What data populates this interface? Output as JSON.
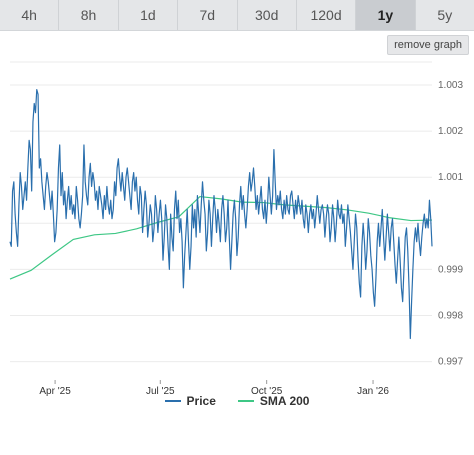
{
  "tabs": [
    {
      "label": "4h",
      "active": false
    },
    {
      "label": "8h",
      "active": false
    },
    {
      "label": "1d",
      "active": false
    },
    {
      "label": "7d",
      "active": false
    },
    {
      "label": "30d",
      "active": false
    },
    {
      "label": "120d",
      "active": false
    },
    {
      "label": "1y",
      "active": true
    },
    {
      "label": "5y",
      "active": false
    }
  ],
  "remove_graph_label": "remove graph",
  "chart_data": {
    "type": "line",
    "x_start": "2025-02-21",
    "x_end": "2026-02-21",
    "x_tick_labels": [
      {
        "label": "Apr '25",
        "date": "2025-04-01"
      },
      {
        "label": "Jul '25",
        "date": "2025-07-01"
      },
      {
        "label": "Oct '25",
        "date": "2025-10-01"
      },
      {
        "label": "Jan '26",
        "date": "2026-01-01"
      }
    ],
    "y_ticks": [
      0.997,
      0.998,
      0.999,
      1.001,
      1.002,
      1.003
    ],
    "ylim": [
      0.9966,
      1.0035
    ],
    "grid": true,
    "series": [
      {
        "name": "Price",
        "color": "#2a6fad",
        "values": [
          0.9996,
          0.9995,
          1.0007,
          1.0009,
          1.0002,
          0.9998,
          0.9995,
          1.0004,
          1.0011,
          1.0008,
          1.0003,
          1.0006,
          1.0009,
          1.0005,
          1.0012,
          1.0018,
          1.0016,
          1.0007,
          1.0022,
          1.0026,
          1.0024,
          1.0029,
          1.0028,
          1.0012,
          1.0014,
          1.0009,
          1.0006,
          1.0003,
          1.0008,
          1.0011,
          1.0009,
          1.0006,
          1.0003,
          1.0007,
          1.0002,
          0.9996,
          0.9998,
          1.0003,
          1.0012,
          1.0017,
          1.0006,
          1.0011,
          1.0004,
          1.0007,
          1.0001,
          1.0005,
          1.0008,
          1.0003,
          1.0006,
          1.0002,
          1.0004,
          1.0001,
          1.0008,
          1.0005,
          1.0001,
          0.9999,
          1.0002,
          1.0006,
          1.0017,
          1.0009,
          1.0006,
          1.0004,
          1.001,
          1.0013,
          1.0008,
          1.0011,
          1.0009,
          1.0005,
          1.0007,
          1.0003,
          1.0008,
          1.0006,
          1.0004,
          1.0001,
          1.0006,
          1.0003,
          1.0008,
          1.0004,
          1.0002,
          1.0005,
          1.0001,
          1.0003,
          1.0009,
          1.0006,
          1.0012,
          1.0014,
          1.001,
          1.0007,
          1.0011,
          1.0008,
          1.0005,
          1.001,
          1.0012,
          1.0009,
          1.0006,
          1.0003,
          1.0009,
          1.0011,
          1.0007,
          1.001,
          1.0005,
          1.0002,
          1.0008,
          1.0006,
          0.9998,
          1.0003,
          1.0007,
          1.0004,
          0.9997,
          1.0,
          1.0004,
          1.0002,
          0.9996,
          0.9999,
          1.0006,
          1.0003,
          0.9998,
          1.0002,
          1.0005,
          1.0001,
          0.9992,
          0.9997,
          1.0004,
          1.0001,
          0.9995,
          0.999,
          1.0002,
          0.9997,
          0.9994,
          1.0003,
          1.0007,
          1.0001,
          1.0005,
          0.9998,
          1.0001,
          0.9996,
          0.9986,
          0.9993,
          0.9998,
          1.0003,
          0.9996,
          0.999,
          0.9995,
          1.0004,
          0.9999,
          1.0003,
          0.9997,
          1.0006,
          1.0002,
          0.9998,
          1.0004,
          1.0009,
          1.0005,
          1.0002,
          0.9994,
          0.9998,
          1.0005,
          1.0002,
          0.9995,
          1.0001,
          1.0006,
          1.0003,
          0.9998,
          1.0003,
          1.0,
          0.9996,
          1.0003,
          1.0006,
          1.0002,
          0.9996,
          0.9999,
          1.0005,
          0.9997,
          0.999,
          0.9996,
          1.0002,
          1.0005,
          1.0001,
          0.9993,
          0.9997,
          1.0004,
          1.0008,
          1.0003,
          1.0006,
          1.0002,
          0.9999,
          1.0003,
          1.0008,
          1.0011,
          1.0007,
          1.0009,
          1.0012,
          1.0008,
          1.0003,
          1.0006,
          1.0002,
          1.0005,
          1.0008,
          1.0003,
          1.0001,
          1.0005,
          1.0,
          1.0004,
          1.001,
          1.0006,
          1.0002,
          1.0006,
          1.0016,
          1.0009,
          1.0003,
          1.0006,
          1.0004,
          1.0007,
          1.0003,
          1.0001,
          1.0005,
          1.0002,
          1.0006,
          1.0003,
          1.0002,
          1.0006,
          1.0007,
          1.0004,
          1.0001,
          1.0005,
          1.0002,
          1.0006,
          1.0004,
          1.0002,
          1.0005,
          1.0001,
          0.9999,
          1.0004,
          1.0002,
          0.9998,
          1.0002,
          1.0004,
          1.0001,
          1.0003,
          0.9999,
          1.0002,
          1.0006,
          1.0003,
          1.0,
          1.0003,
          1.0004,
          1.0002,
          0.9997,
          1.0001,
          1.0004,
          1.0002,
          0.9996,
          0.9999,
          1.0004,
          1.0001,
          0.9996,
          1.0,
          1.0005,
          1.0002,
          1.0001,
          1.0004,
          1.0,
          1.0002,
          0.9995,
          0.9999,
          1.0004,
          1.0001,
          0.9998,
          0.9994,
          0.999,
          0.9996,
          1.0002,
          0.9999,
          0.9992,
          0.9987,
          0.9984,
          0.9995,
          1.0,
          0.9996,
          0.999,
          0.9994,
          1.0001,
          0.9998,
          0.9993,
          0.999,
          0.9985,
          0.9982,
          0.9988,
          0.9996,
          1.0,
          0.9995,
          0.9999,
          1.0003,
          0.9997,
          0.9992,
          0.9997,
          1.0002,
          0.9998,
          0.9994,
          0.9999,
          1.0001,
          0.9996,
          0.9991,
          0.9987,
          0.9992,
          0.9997,
          0.9992,
          0.9986,
          0.9983,
          0.999,
          0.9997,
          0.9999,
          0.9994,
          0.9986,
          0.9975,
          0.9983,
          0.999,
          0.9996,
          0.9999,
          0.9996,
          1.0,
          0.9996,
          0.9993,
          0.9997,
          1.0,
          1.0002,
          0.9999,
          1.0001,
          0.9999,
          1.0005,
          1.0001,
          0.9995
        ]
      },
      {
        "name": "SMA 200",
        "color": "#3ec785",
        "points": [
          [
            0,
            0.99879
          ],
          [
            0.05,
            0.99898
          ],
          [
            0.1,
            0.99932
          ],
          [
            0.15,
            0.99965
          ],
          [
            0.2,
            0.99975
          ],
          [
            0.25,
            0.99978
          ],
          [
            0.3,
            0.99988
          ],
          [
            0.35,
            1.00002
          ],
          [
            0.4,
            1.00014
          ],
          [
            0.45,
            1.00058
          ],
          [
            0.5,
            1.00053
          ],
          [
            0.55,
            1.00046
          ],
          [
            0.6,
            1.00045
          ],
          [
            0.65,
            1.0004
          ],
          [
            0.7,
            1.00037
          ],
          [
            0.75,
            1.00034
          ],
          [
            0.8,
            1.00029
          ],
          [
            0.85,
            1.00022
          ],
          [
            0.9,
            1.00012
          ],
          [
            0.95,
            1.00006
          ],
          [
            1.0,
            1.00007
          ]
        ]
      }
    ]
  }
}
